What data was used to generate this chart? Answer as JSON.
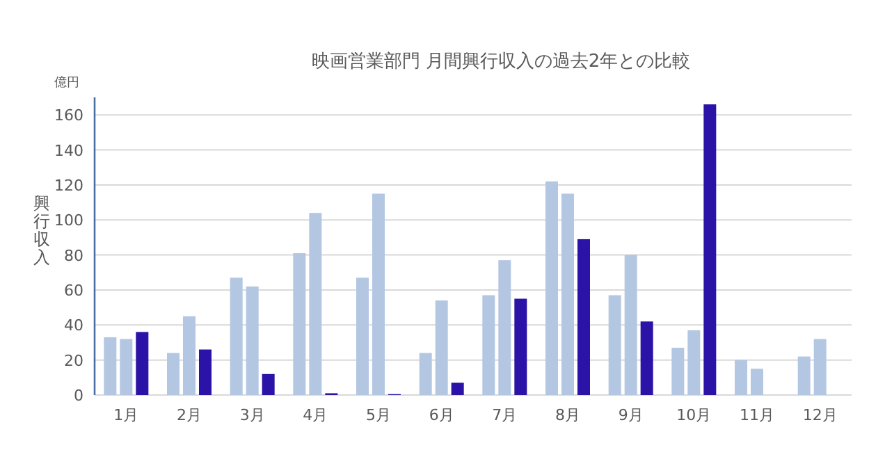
{
  "chart_data": {
    "type": "bar",
    "title": "映画営業部門 月間興行収入の過去2年との比較",
    "ylabel": "興行収入",
    "annotations": [
      "億円"
    ],
    "categories": [
      "1月",
      "2月",
      "3月",
      "4月",
      "5月",
      "6月",
      "7月",
      "8月",
      "9月",
      "10月",
      "11月",
      "12月"
    ],
    "series": [
      {
        "color": "#b4c7e2",
        "values": [
          33,
          24,
          67,
          81,
          67,
          24,
          57,
          122,
          57,
          27,
          20,
          22
        ]
      },
      {
        "color": "#b4c7e2",
        "values": [
          32,
          45,
          62,
          104,
          115,
          54,
          77,
          115,
          80,
          37,
          15,
          32
        ]
      },
      {
        "color": "#2a13a6",
        "values": [
          36,
          26,
          12,
          1,
          0.5,
          7,
          55,
          89,
          42,
          166,
          null,
          null
        ]
      }
    ],
    "ylim": [
      0,
      170
    ],
    "yticks": [
      0,
      20,
      40,
      60,
      80,
      100,
      120,
      140,
      160
    ],
    "grid": "y"
  }
}
